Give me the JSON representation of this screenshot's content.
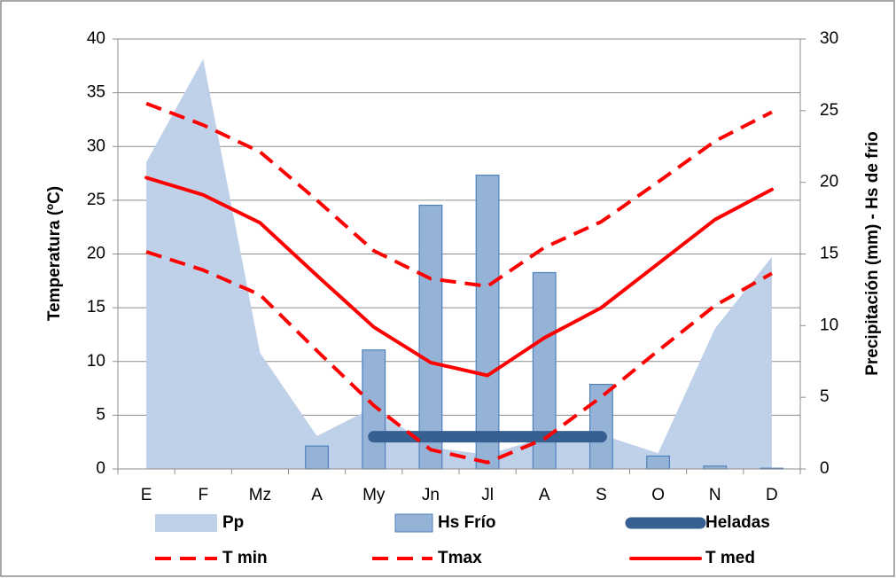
{
  "chart_data": {
    "type": "combo",
    "categories": [
      "E",
      "F",
      "Mz",
      "A",
      "My",
      "Jn",
      "Jl",
      "A",
      "S",
      "O",
      "N",
      "D"
    ],
    "y_label": "Temperatura (ºC)",
    "y2_label": "Precipitación (mm) - Hs de frio",
    "ylim": [
      0,
      40
    ],
    "yticks": [
      0,
      5,
      10,
      15,
      20,
      25,
      30,
      35,
      40
    ],
    "y2lim": [
      0,
      30
    ],
    "y2ticks": [
      0,
      5,
      10,
      15,
      20,
      25,
      30
    ],
    "grid": true,
    "legend": "bottom",
    "series": [
      {
        "name": "Pp",
        "type": "area",
        "axis": "y2",
        "color": "#bfd1e8",
        "values": [
          21.4,
          28.6,
          8.1,
          2.3,
          4.3,
          1.5,
          1.0,
          2.2,
          2.4,
          1.1,
          9.8,
          14.8
        ]
      },
      {
        "name": "Hs Frío",
        "type": "bar",
        "axis": "y2",
        "color": "#95b3d7",
        "edge": "#4f81bd",
        "values": [
          null,
          null,
          null,
          1.6,
          8.3,
          18.4,
          20.5,
          13.7,
          5.9,
          0.9,
          0.2,
          0.05
        ]
      },
      {
        "name": "Heladas",
        "type": "line",
        "axis": "y",
        "color": "#376092",
        "width": 13,
        "values": [
          null,
          null,
          null,
          null,
          3,
          3,
          3,
          3,
          3,
          null,
          null,
          null
        ]
      },
      {
        "name": "T min",
        "type": "line",
        "axis": "y",
        "color": "#ff0000",
        "dashed": true,
        "width": 4,
        "values": [
          20.2,
          18.5,
          16.2,
          11,
          5.9,
          1.8,
          0.6,
          2.8,
          6.7,
          11,
          15.2,
          18.2
        ]
      },
      {
        "name": "Tmax",
        "type": "line",
        "axis": "y",
        "color": "#ff0000",
        "dashed": true,
        "width": 4,
        "values": [
          34,
          32,
          29.5,
          25,
          20.3,
          17.7,
          17,
          20.6,
          23,
          26.7,
          30.5,
          33.2
        ]
      },
      {
        "name": "T med",
        "type": "line",
        "axis": "y",
        "color": "#ff0000",
        "dashed": false,
        "width": 4,
        "values": [
          27.1,
          25.5,
          22.9,
          18,
          13.2,
          9.9,
          8.7,
          12.2,
          15,
          19.1,
          23.2,
          26
        ]
      }
    ]
  }
}
